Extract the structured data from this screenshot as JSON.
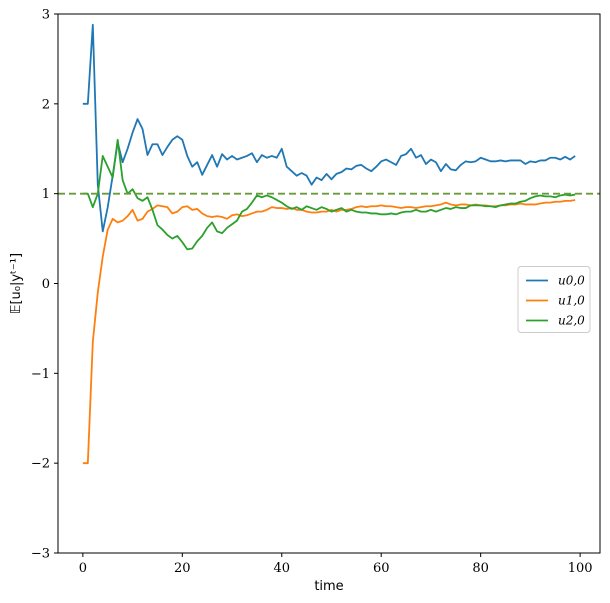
{
  "chart_data": {
    "type": "line",
    "xlabel": "time",
    "ylabel": "𝔼[u₀|yᵗ⁻¹]",
    "xlim": [
      -5,
      104
    ],
    "ylim": [
      -3,
      3
    ],
    "xticks": [
      0,
      20,
      40,
      60,
      80,
      100
    ],
    "yticks": [
      -3,
      -2,
      -1,
      0,
      1,
      2,
      3
    ],
    "ytick_labels": [
      "−3",
      "−2",
      "−1",
      "0",
      "1",
      "2",
      "3"
    ],
    "grid": false,
    "legend": "center-right",
    "reference_line": {
      "y": 1,
      "style": "dashed",
      "color": "#6a9a3a"
    },
    "series": [
      {
        "name": "u0,0",
        "color": "#1f77b4",
        "x": [
          0,
          1,
          2,
          3,
          4,
          5,
          6,
          7,
          8,
          9,
          10,
          11,
          12,
          13,
          14,
          15,
          16,
          17,
          18,
          19,
          20,
          21,
          22,
          23,
          24,
          25,
          26,
          27,
          28,
          29,
          30,
          31,
          32,
          33,
          34,
          35,
          36,
          37,
          38,
          39,
          40,
          41,
          42,
          43,
          44,
          45,
          46,
          47,
          48,
          49,
          50,
          51,
          52,
          53,
          54,
          55,
          56,
          57,
          58,
          59,
          60,
          61,
          62,
          63,
          64,
          65,
          66,
          67,
          68,
          69,
          70,
          71,
          72,
          73,
          74,
          75,
          76,
          77,
          78,
          79,
          80,
          81,
          82,
          83,
          84,
          85,
          86,
          87,
          88,
          89,
          90,
          91,
          92,
          93,
          94,
          95,
          96,
          97,
          98,
          99
        ],
        "y": [
          2.0,
          2.0,
          2.88,
          1.1,
          0.58,
          0.85,
          1.2,
          1.57,
          1.35,
          1.5,
          1.68,
          1.83,
          1.72,
          1.43,
          1.55,
          1.55,
          1.43,
          1.52,
          1.6,
          1.64,
          1.6,
          1.42,
          1.3,
          1.35,
          1.21,
          1.32,
          1.43,
          1.3,
          1.44,
          1.38,
          1.42,
          1.38,
          1.4,
          1.42,
          1.45,
          1.35,
          1.43,
          1.4,
          1.42,
          1.4,
          1.5,
          1.3,
          1.25,
          1.2,
          1.23,
          1.2,
          1.1,
          1.18,
          1.15,
          1.22,
          1.16,
          1.22,
          1.24,
          1.28,
          1.27,
          1.31,
          1.32,
          1.28,
          1.25,
          1.3,
          1.36,
          1.38,
          1.35,
          1.32,
          1.42,
          1.44,
          1.5,
          1.4,
          1.43,
          1.33,
          1.38,
          1.35,
          1.25,
          1.33,
          1.27,
          1.26,
          1.32,
          1.36,
          1.35,
          1.36,
          1.4,
          1.38,
          1.36,
          1.36,
          1.37,
          1.36,
          1.37,
          1.37,
          1.37,
          1.33,
          1.36,
          1.35,
          1.37,
          1.37,
          1.4,
          1.4,
          1.38,
          1.41,
          1.38,
          1.42
        ]
      },
      {
        "name": "u1,0",
        "color": "#ff7f0e",
        "x": [
          0,
          1,
          2,
          3,
          4,
          5,
          6,
          7,
          8,
          9,
          10,
          11,
          12,
          13,
          14,
          15,
          16,
          17,
          18,
          19,
          20,
          21,
          22,
          23,
          24,
          25,
          26,
          27,
          28,
          29,
          30,
          31,
          32,
          33,
          34,
          35,
          36,
          37,
          38,
          39,
          40,
          41,
          42,
          43,
          44,
          45,
          46,
          47,
          48,
          49,
          50,
          51,
          52,
          53,
          54,
          55,
          56,
          57,
          58,
          59,
          60,
          61,
          62,
          63,
          64,
          65,
          66,
          67,
          68,
          69,
          70,
          71,
          72,
          73,
          74,
          75,
          76,
          77,
          78,
          79,
          80,
          81,
          82,
          83,
          84,
          85,
          86,
          87,
          88,
          89,
          90,
          91,
          92,
          93,
          94,
          95,
          96,
          97,
          98,
          99
        ],
        "y": [
          -2.0,
          -2.0,
          -0.65,
          -0.1,
          0.3,
          0.6,
          0.72,
          0.68,
          0.7,
          0.75,
          0.82,
          0.7,
          0.72,
          0.8,
          0.83,
          0.87,
          0.86,
          0.85,
          0.78,
          0.8,
          0.85,
          0.86,
          0.82,
          0.83,
          0.78,
          0.75,
          0.74,
          0.75,
          0.74,
          0.72,
          0.76,
          0.77,
          0.75,
          0.76,
          0.78,
          0.8,
          0.8,
          0.82,
          0.85,
          0.84,
          0.84,
          0.83,
          0.84,
          0.82,
          0.82,
          0.8,
          0.79,
          0.79,
          0.8,
          0.8,
          0.82,
          0.8,
          0.82,
          0.82,
          0.83,
          0.85,
          0.86,
          0.85,
          0.86,
          0.86,
          0.87,
          0.86,
          0.86,
          0.85,
          0.84,
          0.85,
          0.85,
          0.84,
          0.85,
          0.86,
          0.86,
          0.87,
          0.88,
          0.9,
          0.88,
          0.87,
          0.88,
          0.88,
          0.87,
          0.88,
          0.87,
          0.87,
          0.86,
          0.86,
          0.87,
          0.87,
          0.88,
          0.88,
          0.89,
          0.88,
          0.88,
          0.88,
          0.89,
          0.9,
          0.9,
          0.91,
          0.91,
          0.92,
          0.92,
          0.93
        ]
      },
      {
        "name": "u2,0",
        "color": "#2ca02c",
        "x": [
          0,
          1,
          2,
          3,
          4,
          5,
          6,
          7,
          8,
          9,
          10,
          11,
          12,
          13,
          14,
          15,
          16,
          17,
          18,
          19,
          20,
          21,
          22,
          23,
          24,
          25,
          26,
          27,
          28,
          29,
          30,
          31,
          32,
          33,
          34,
          35,
          36,
          37,
          38,
          39,
          40,
          41,
          42,
          43,
          44,
          45,
          46,
          47,
          48,
          49,
          50,
          51,
          52,
          53,
          54,
          55,
          56,
          57,
          58,
          59,
          60,
          61,
          62,
          63,
          64,
          65,
          66,
          67,
          68,
          69,
          70,
          71,
          72,
          73,
          74,
          75,
          76,
          77,
          78,
          79,
          80,
          81,
          82,
          83,
          84,
          85,
          86,
          87,
          88,
          89,
          90,
          91,
          92,
          93,
          94,
          95,
          96,
          97,
          98,
          99
        ],
        "y": [
          1.0,
          1.0,
          0.85,
          1.0,
          1.42,
          1.3,
          1.18,
          1.6,
          1.15,
          1.0,
          1.05,
          0.95,
          0.92,
          0.96,
          0.82,
          0.65,
          0.6,
          0.54,
          0.5,
          0.53,
          0.46,
          0.38,
          0.39,
          0.47,
          0.53,
          0.62,
          0.68,
          0.58,
          0.56,
          0.62,
          0.66,
          0.7,
          0.8,
          0.83,
          0.9,
          0.98,
          0.96,
          0.98,
          0.96,
          0.93,
          0.9,
          0.86,
          0.83,
          0.85,
          0.82,
          0.86,
          0.84,
          0.82,
          0.85,
          0.83,
          0.8,
          0.82,
          0.84,
          0.8,
          0.82,
          0.8,
          0.79,
          0.79,
          0.78,
          0.78,
          0.77,
          0.77,
          0.78,
          0.77,
          0.79,
          0.8,
          0.8,
          0.82,
          0.8,
          0.8,
          0.82,
          0.8,
          0.82,
          0.84,
          0.83,
          0.85,
          0.84,
          0.84,
          0.87,
          0.87,
          0.87,
          0.86,
          0.86,
          0.85,
          0.87,
          0.88,
          0.89,
          0.89,
          0.91,
          0.92,
          0.95,
          0.97,
          0.98,
          0.97,
          0.97,
          0.96,
          0.98,
          0.99,
          0.98,
          0.99
        ]
      }
    ]
  }
}
